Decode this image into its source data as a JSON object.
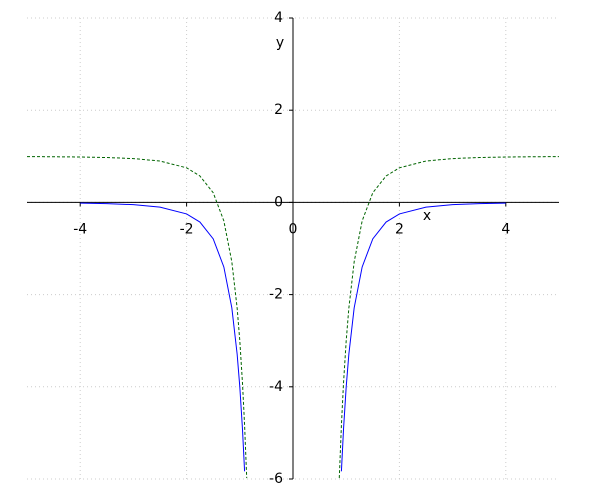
{
  "chart_data": {
    "type": "line",
    "x_label": "x",
    "y_label": "y",
    "x": [
      -5,
      -4.5,
      -4,
      -3.5,
      -3,
      -2.5,
      -2,
      -1.75,
      -1.5,
      -1.3,
      -1.15,
      -1.05,
      -1,
      -0.95,
      -0.91,
      -0.87,
      0,
      0.87,
      0.91,
      0.95,
      1,
      1.05,
      1.15,
      1.3,
      1.5,
      1.75,
      2,
      2.5,
      3,
      3.5,
      4,
      4.5,
      5
    ],
    "series": [
      {
        "color": "#0000ff",
        "linestyle": "solid",
        "values": [
          null,
          null,
          -0.0156,
          -0.0267,
          -0.0494,
          -0.1024,
          -0.25,
          -0.4265,
          -0.7901,
          -1.4005,
          -2.287,
          -3.291,
          -4,
          -4.911,
          -5.833,
          null,
          null,
          null,
          -5.833,
          -4.911,
          -4,
          -3.291,
          -2.287,
          -1.4005,
          -0.7901,
          -0.4265,
          -0.25,
          -0.1024,
          -0.0494,
          -0.0267,
          -0.0156,
          null,
          null
        ]
      },
      {
        "color": "#006400",
        "linestyle": "dashed",
        "values": [
          0.9936,
          0.9902,
          0.9844,
          0.9733,
          0.9506,
          0.8976,
          0.75,
          0.5735,
          0.2099,
          -0.4005,
          -1.287,
          -2.291,
          -3,
          -3.911,
          -4.833,
          -5.98,
          null,
          -5.98,
          -4.833,
          -3.911,
          -3,
          -2.291,
          -1.287,
          -0.4005,
          0.2099,
          0.5735,
          0.75,
          0.8976,
          0.9506,
          0.9733,
          0.9844,
          0.9902,
          0.9936
        ]
      }
    ],
    "xlim": [
      -5,
      5
    ],
    "ylim": [
      -6,
      4
    ],
    "xticks": [
      -4,
      -2,
      0,
      2,
      4
    ],
    "yticks": [
      -6,
      -4,
      -2,
      0,
      2,
      4
    ],
    "grid": true
  }
}
